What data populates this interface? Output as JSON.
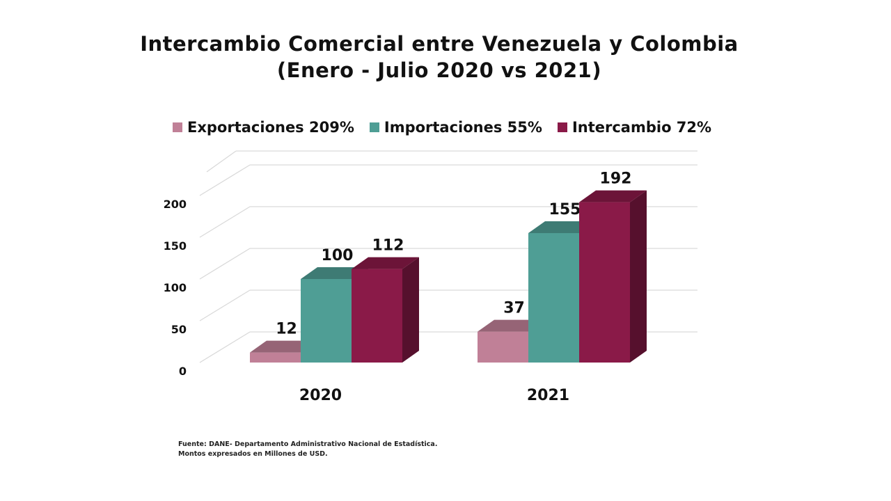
{
  "title_line1": "Intercambio Comercial entre Venezuela y Colombia",
  "title_line2": "(Enero - Julio 2020 vs 2021)",
  "legend": [
    {
      "label": "Exportaciones 209%",
      "color": "#c08097"
    },
    {
      "label": "Importaciones 55%",
      "color": "#4f9e95"
    },
    {
      "label": "Intercambio 72%",
      "color": "#8a1a48"
    }
  ],
  "chart_data": {
    "type": "bar",
    "categories": [
      "2020",
      "2021"
    ],
    "series": [
      {
        "name": "Exportaciones 209%",
        "values": [
          12,
          37
        ],
        "color": "#c08097"
      },
      {
        "name": "Importaciones 55%",
        "values": [
          100,
          155
        ],
        "color": "#4f9e95"
      },
      {
        "name": "Intercambio 72%",
        "values": [
          112,
          192
        ],
        "color": "#8a1a48"
      }
    ],
    "data_labels": [
      [
        "12",
        "37"
      ],
      [
        "100",
        "155"
      ],
      [
        "112",
        "192"
      ]
    ],
    "yticks": [
      "0",
      "50",
      "100",
      "150",
      "200"
    ],
    "ylim": [
      0,
      200
    ],
    "grid": true,
    "legend_position": "top",
    "style": "3d-column"
  },
  "footnote_line1": "Fuente: DANE- Departamento Administrativo Nacional de Estadística.",
  "footnote_line2": "Montos expresados en Millones de USD."
}
